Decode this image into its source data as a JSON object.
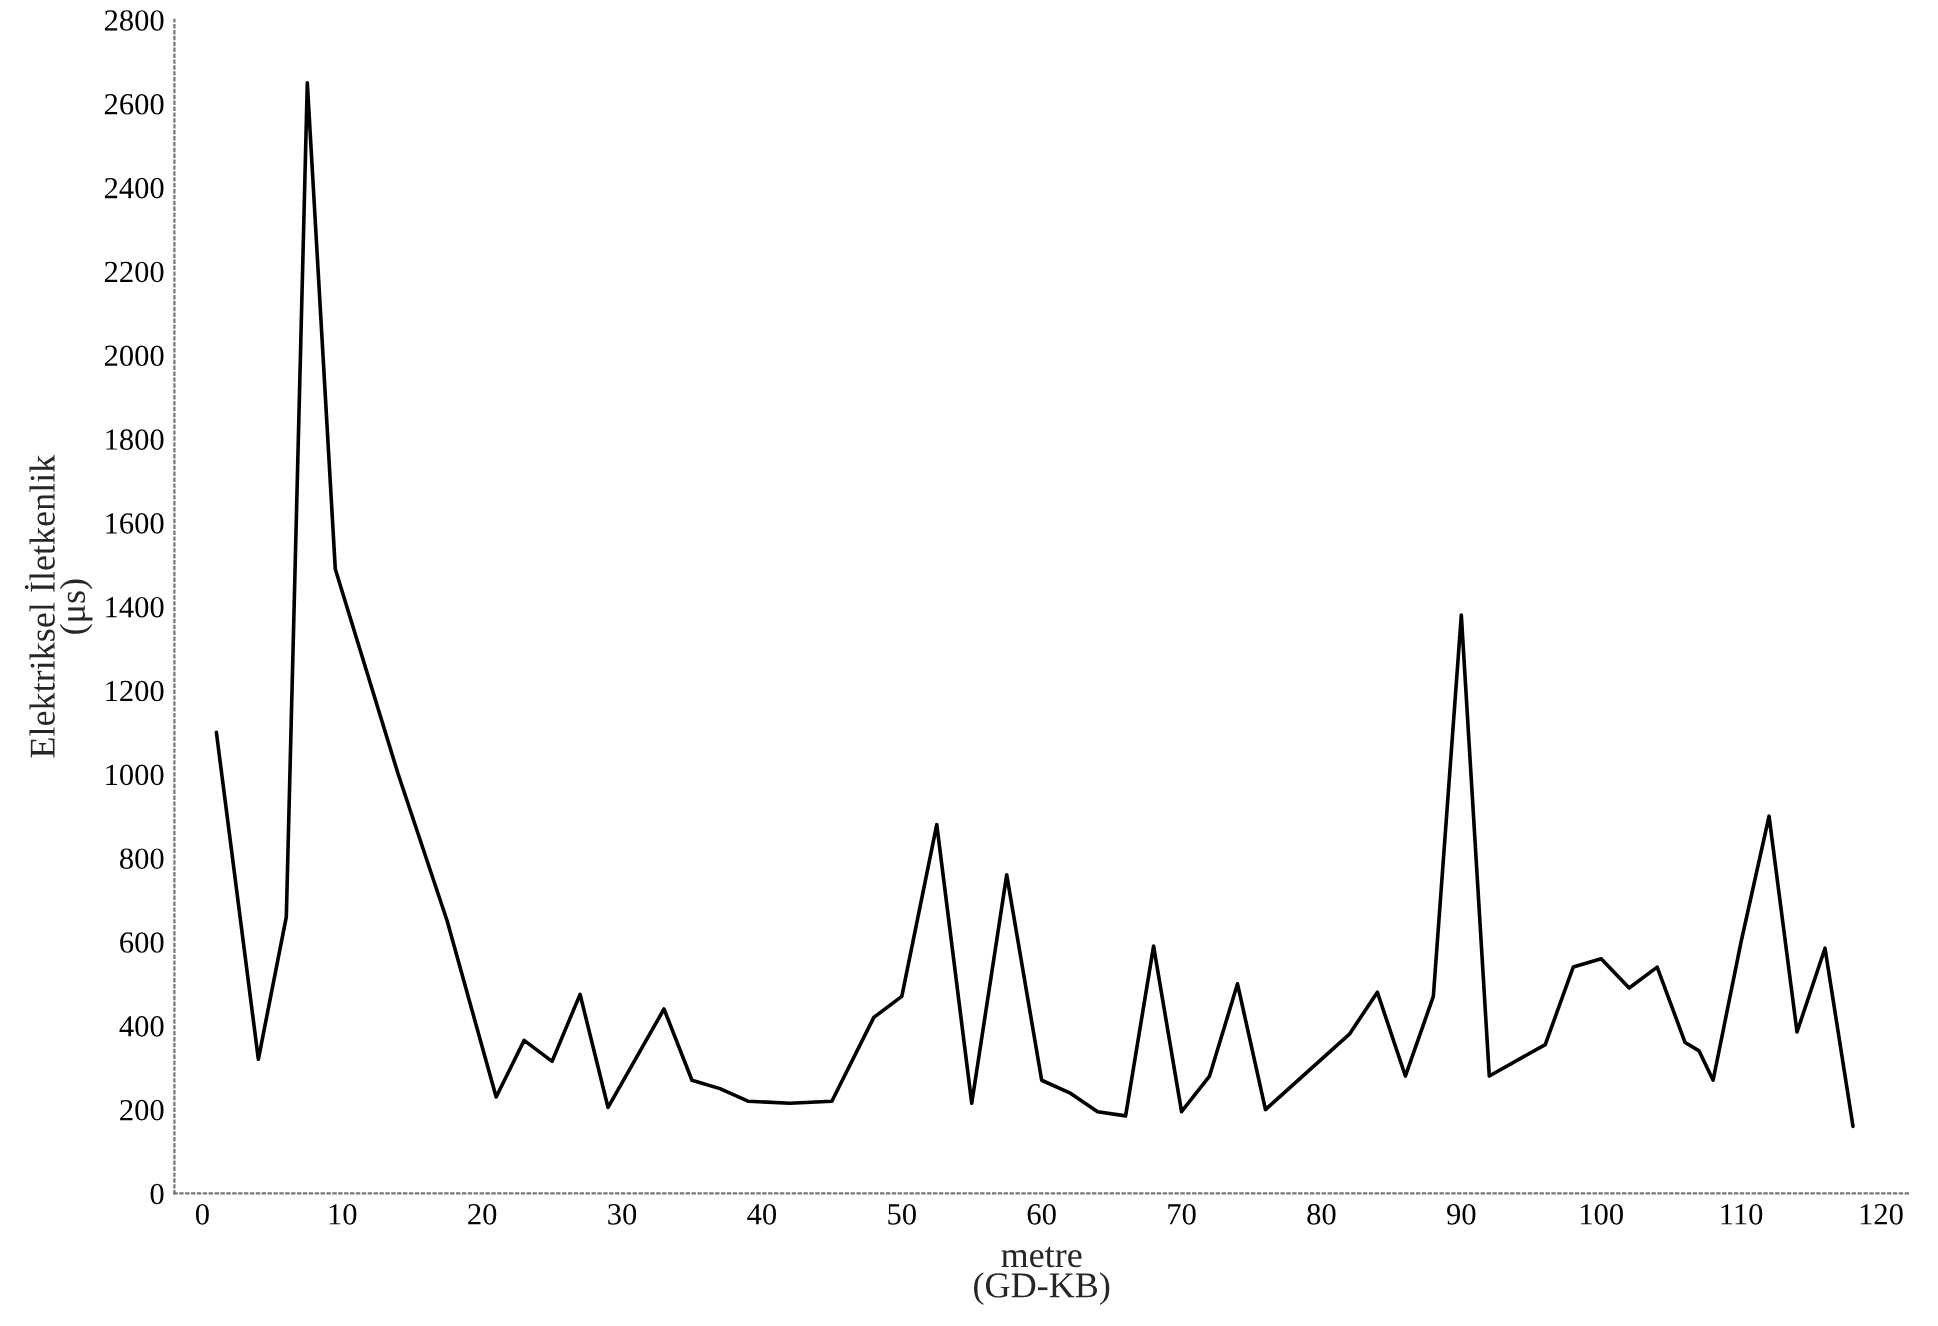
{
  "chart_data": {
    "type": "line",
    "xlabel": "metre\n(GD-KB)",
    "ylabel": "Elektriksel İletkenlik\n(μs)",
    "x": [
      1,
      4,
      6,
      7.5,
      9.5,
      14,
      17.5,
      21,
      23,
      25,
      27,
      29,
      33,
      35,
      37,
      39,
      42,
      45,
      48,
      50,
      52.5,
      55,
      57.5,
      60,
      62,
      64,
      66,
      68,
      70,
      72,
      74,
      76,
      82,
      84,
      86,
      88,
      90,
      92,
      96,
      98,
      100,
      102,
      104,
      106,
      107,
      108,
      110,
      112,
      114,
      116,
      118
    ],
    "series": [
      {
        "color": "#000000",
        "values": [
          1100,
          320,
          660,
          2650,
          1490,
          1000,
          650,
          230,
          365,
          315,
          475,
          205,
          440,
          270,
          250,
          220,
          215,
          220,
          420,
          470,
          880,
          215,
          760,
          270,
          240,
          195,
          185,
          590,
          195,
          280,
          500,
          200,
          380,
          480,
          280,
          470,
          1380,
          280,
          355,
          540,
          560,
          490,
          540,
          360,
          340,
          270,
          600,
          900,
          385,
          585,
          160
        ]
      }
    ],
    "xlim": [
      -2,
      122
    ],
    "ylim": [
      0,
      2800
    ],
    "xticks": [
      0,
      10,
      20,
      30,
      40,
      50,
      60,
      70,
      80,
      90,
      100,
      110,
      120
    ],
    "yticks": [
      0,
      200,
      400,
      600,
      800,
      1000,
      1200,
      1400,
      1600,
      1800,
      2000,
      2200,
      2400,
      2600,
      2800
    ],
    "grid": false,
    "legend": false,
    "marker": "none",
    "line_style": "solid"
  }
}
